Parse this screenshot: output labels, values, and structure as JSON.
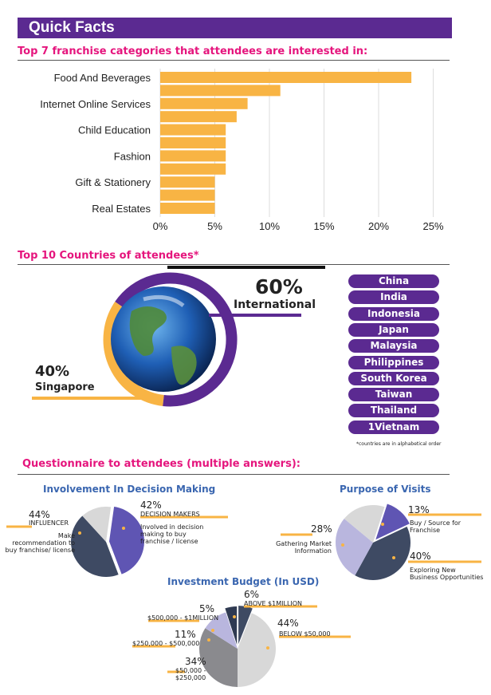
{
  "header": {
    "title": "Quick Facts"
  },
  "sections": {
    "franchise_title": "Top 7 franchise categories that attendees are interested in:",
    "countries_title": "Top 10 Countries of attendees*",
    "questionnaire_title": "Questionnaire to attendees (multiple answers):"
  },
  "colors": {
    "banner": "#5b2a91",
    "pink": "#e5157d",
    "bar": "#f8b444",
    "pie_dark": "#3e4a63",
    "pie_purple": "#5f55b3",
    "pie_light": "#d8d8d8",
    "pie_lavender": "#b9b6de",
    "pie_gray": "#8a8a8e"
  },
  "chart_data": [
    {
      "type": "bar",
      "orientation": "horizontal",
      "categories": [
        "Food And Beverages",
        "",
        "Internet Online Services",
        "",
        "Child Education",
        "",
        "Fashion",
        "",
        "Gift & Stationery",
        "",
        "Real Estates"
      ],
      "values": [
        23,
        11,
        8,
        7,
        6,
        6,
        6,
        6,
        5,
        5,
        5
      ],
      "xticks": [
        "0%",
        "5%",
        "10%",
        "15%",
        "20%",
        "25%"
      ],
      "xlim": [
        0,
        25
      ],
      "grid": true
    },
    {
      "type": "pie",
      "title": "Involvement In Decision Making",
      "slices": [
        {
          "label": "DECISION MAKERS",
          "value": 42,
          "pct_label": "42%",
          "desc": "Involved in decision making to buy franchise / license"
        },
        {
          "label": "INFLUENCER",
          "value": 44,
          "pct_label": "44%",
          "desc": "Make recommendation to buy franchise/ license"
        },
        {
          "label": "",
          "value": 14,
          "pct_label": ""
        }
      ]
    },
    {
      "type": "pie",
      "title": "Purpose of Visits",
      "slices": [
        {
          "label": "Buy / Source for Franchise",
          "value": 13,
          "pct_label": "13%"
        },
        {
          "label": "Exploring New Business Opportunities",
          "value": 40,
          "pct_label": "40%"
        },
        {
          "label": "Gathering Market Information",
          "value": 28,
          "pct_label": "28%"
        },
        {
          "label": "",
          "value": 19,
          "pct_label": ""
        }
      ]
    },
    {
      "type": "pie",
      "title": "Investment Budget (In USD)",
      "slices": [
        {
          "label": "ABOVE $1MILLION",
          "value": 6,
          "pct_label": "6%"
        },
        {
          "label": "BELOW $50,000",
          "value": 44,
          "pct_label": "44%"
        },
        {
          "label": "$50,000 - $250,000",
          "value": 34,
          "pct_label": "34%"
        },
        {
          "label": "$250,000 - $500,000",
          "value": 11,
          "pct_label": "11%"
        },
        {
          "label": "$500,000 - $1MILLION",
          "value": 5,
          "pct_label": "5%"
        }
      ]
    }
  ],
  "countries": {
    "international_pct": "60%",
    "international_label": "International",
    "singapore_pct": "40%",
    "singapore_label": "Singapore",
    "list": [
      "China",
      "India",
      "Indonesia",
      "Japan",
      "Malaysia",
      "Philippines",
      "South Korea",
      "Taiwan",
      "Thailand",
      "1Vietnam"
    ],
    "footnote": "*countries are in alphabetical order"
  },
  "questionnaire": {
    "involvement": {
      "title": "Involvement In Decision Making",
      "dm_pct": "42%",
      "dm_label": "DECISION MAKERS",
      "dm_desc": "Involved in decision making to buy franchise / license",
      "inf_pct": "44%",
      "inf_label": "INFLUENCER",
      "inf_desc": "Make recommendation to buy franchise/ license"
    },
    "purpose": {
      "title": "Purpose of Visits",
      "buy_pct": "13%",
      "buy_label": "Buy / Source for Franchise",
      "explore_pct": "40%",
      "explore_label": "Exploring New Business Opportunities",
      "gather_pct": "28%",
      "gather_label": "Gathering Market Information"
    },
    "budget": {
      "title": "Investment Budget (In USD)",
      "above_pct": "6%",
      "above_label": "ABOVE $1MILLION",
      "below_pct": "44%",
      "below_label": "BELOW $50,000",
      "mid_pct": "34%",
      "mid_label": "$50,000 - $250,000",
      "m250_pct": "11%",
      "m250_label": "$250,000 - $500,000",
      "m500_pct": "5%",
      "m500_label": "$500,000 - $1MILLION"
    }
  }
}
